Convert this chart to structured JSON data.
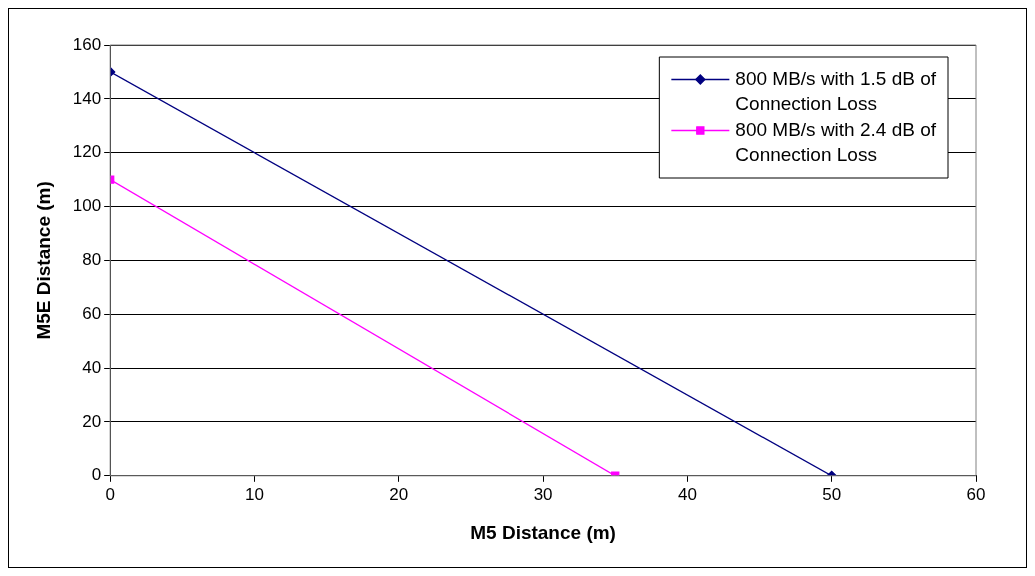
{
  "chart_data": {
    "type": "line",
    "xlabel": "M5 Distance (m)",
    "ylabel": "M5E Distance (m)",
    "xlim": [
      0,
      60
    ],
    "xticks": [
      0,
      10,
      20,
      30,
      40,
      50,
      60
    ],
    "ylim": [
      0,
      160
    ],
    "yticks": [
      0,
      20,
      40,
      60,
      80,
      100,
      120,
      140,
      160
    ],
    "grid": "y",
    "legend": "top right",
    "line_style": "solid",
    "series": [
      {
        "name": "800 MB/s with 1.5 dB of Connection Loss",
        "color": "#000080",
        "marker": "diamond",
        "x": [
          0,
          50
        ],
        "values": [
          150,
          0
        ]
      },
      {
        "name": "800 MB/s with 2.4 dB of Connection Loss",
        "color": "#ff00ff",
        "marker": "square",
        "x": [
          0,
          35
        ],
        "values": [
          110,
          0
        ]
      }
    ]
  }
}
